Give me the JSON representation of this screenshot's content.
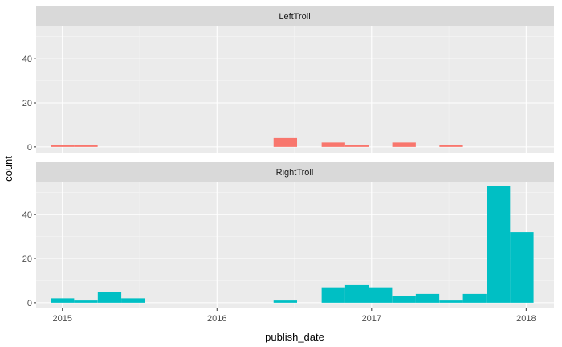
{
  "chart_data": {
    "type": "bar",
    "xlabel": "publish_date",
    "ylabel": "count",
    "x_ticks": [
      "2015",
      "2016",
      "2017",
      "2018"
    ],
    "y_ticks": [
      "0",
      "20",
      "40"
    ],
    "xlim": [
      2014.83,
      2018.18
    ],
    "ylim": [
      -2.6,
      55
    ],
    "bin_width": 0.152,
    "panels": [
      {
        "name": "LeftTroll",
        "color": "#F8766D",
        "bins": [
          {
            "x": 2015.0,
            "count": 1
          },
          {
            "x": 2015.152,
            "count": 1
          },
          {
            "x": 2016.442,
            "count": 4
          },
          {
            "x": 2016.753,
            "count": 2
          },
          {
            "x": 2016.905,
            "count": 1
          },
          {
            "x": 2017.21,
            "count": 2
          },
          {
            "x": 2017.515,
            "count": 1
          }
        ]
      },
      {
        "name": "RightTroll",
        "color": "#00BFC4",
        "bins": [
          {
            "x": 2015.0,
            "count": 2
          },
          {
            "x": 2015.152,
            "count": 1
          },
          {
            "x": 2015.305,
            "count": 5
          },
          {
            "x": 2015.457,
            "count": 2
          },
          {
            "x": 2016.442,
            "count": 1
          },
          {
            "x": 2016.753,
            "count": 7
          },
          {
            "x": 2016.905,
            "count": 8
          },
          {
            "x": 2017.057,
            "count": 7
          },
          {
            "x": 2017.21,
            "count": 3
          },
          {
            "x": 2017.362,
            "count": 4
          },
          {
            "x": 2017.515,
            "count": 1
          },
          {
            "x": 2017.667,
            "count": 4
          },
          {
            "x": 2017.82,
            "count": 53
          },
          {
            "x": 2017.972,
            "count": 32
          }
        ]
      }
    ]
  }
}
